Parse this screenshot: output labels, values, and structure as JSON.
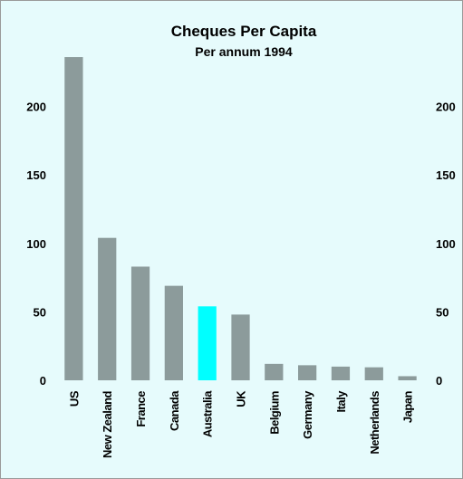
{
  "chart_data": {
    "type": "bar",
    "title": "Cheques Per Capita",
    "subtitle": "Per annum 1994",
    "xlabel": "",
    "ylabel": "",
    "categories": [
      "US",
      "New Zealand",
      "France",
      "Canada",
      "Australia",
      "UK",
      "Belgium",
      "Germany",
      "Italy",
      "Netherlands",
      "Japan"
    ],
    "values": [
      236,
      104,
      83,
      69,
      54,
      48,
      12,
      11,
      10,
      9.5,
      3
    ],
    "highlight_category": "Australia",
    "ylim": [
      0,
      240
    ],
    "yticks": [
      0,
      50,
      100,
      150,
      200
    ],
    "grid": false,
    "legend": "none",
    "colors": {
      "background": "#e6fbfc",
      "bar": "#8c9b9b",
      "highlight": "#00ffff",
      "axis": "#000000"
    }
  }
}
